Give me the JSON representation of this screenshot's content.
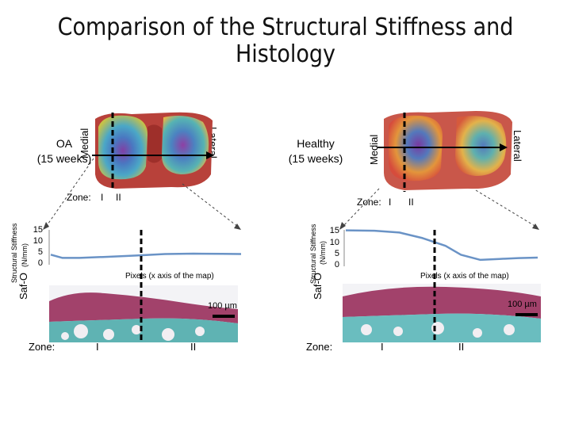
{
  "title_line1": "Comparison of the Structural Stiffness and",
  "title_line2": "Histology",
  "panels": [
    {
      "group_line1": "OA",
      "group_line2": "(15 weeks)",
      "medial": "Medial",
      "lateral": "Lateral",
      "zone_label": "Zone:",
      "zone_I": "I",
      "zone_II": "II",
      "y_axis_label_1": "Structural Stiffness",
      "y_axis_label_2": "(N/mm)",
      "x_axis_label": "Pixels (x axis of the map)",
      "safo": "Saf-O",
      "scale": "100 µm"
    },
    {
      "group_line1": "Healthy",
      "group_line2": "(15 weeks)",
      "medial": "Medial",
      "lateral": "Lateral",
      "zone_label": "Zone:",
      "zone_I": "I",
      "zone_II": "II",
      "y_axis_label_1": "Structural Stiffness",
      "y_axis_label_2": "(N/mm)",
      "x_axis_label": "Pixels (x axis of the map)",
      "safo": "Saf-O",
      "scale": "100 µm"
    }
  ],
  "chart_data": [
    {
      "type": "line",
      "panel": "OA (15 weeks)",
      "title": "",
      "ylabel": "Structural Stiffness (N/mm)",
      "xlabel": "Pixels (x axis of the map)",
      "y_ticks": [
        "15",
        "10",
        "5",
        "0"
      ],
      "ylim": [
        0,
        15
      ],
      "xlim": [
        0,
        1
      ],
      "x": [
        0,
        0.06,
        0.15,
        0.3,
        0.45,
        0.6,
        0.75,
        0.9,
        1.0
      ],
      "y": [
        4.0,
        2.5,
        2.5,
        3.0,
        3.6,
        4.3,
        4.5,
        4.4,
        4.3
      ],
      "color": "#6a93c6",
      "zone_boundary_x": 0.5
    },
    {
      "type": "line",
      "panel": "Healthy (15 weeks)",
      "title": "",
      "ylabel": "Structural Stiffness (N/mm)",
      "xlabel": "Pixels (x axis of the map)",
      "y_ticks": [
        "15",
        "10",
        "5",
        "0"
      ],
      "ylim": [
        0,
        15
      ],
      "xlim": [
        0,
        1
      ],
      "x": [
        0,
        0.15,
        0.28,
        0.4,
        0.52,
        0.6,
        0.7,
        0.8,
        0.9,
        1.0
      ],
      "y": [
        15.5,
        15.3,
        14.5,
        12.0,
        8.5,
        4.5,
        2.2,
        2.6,
        3.0,
        3.2
      ],
      "color": "#6a93c6",
      "zone_boundary_x": 0.5
    }
  ]
}
